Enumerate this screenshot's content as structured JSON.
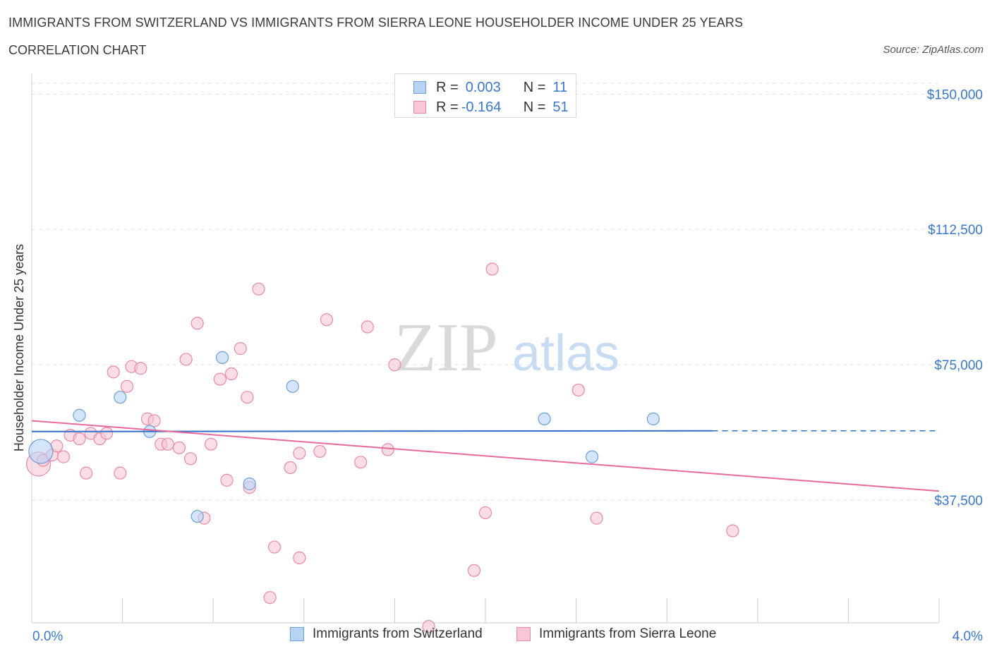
{
  "header": {
    "title": "IMMIGRANTS FROM SWITZERLAND VS IMMIGRANTS FROM SIERRA LEONE HOUSEHOLDER INCOME UNDER 25 YEARS",
    "subtitle": "CORRELATION CHART",
    "source": "Source: ZipAtlas.com"
  },
  "legend": {
    "rows": [
      {
        "r_label": "R =",
        "r_value": "0.003",
        "n_label": "N =",
        "n_value": "11"
      },
      {
        "r_label": "R =",
        "r_value": "-0.164",
        "n_label": "N =",
        "n_value": "51"
      }
    ]
  },
  "bottom_legend": {
    "items": [
      {
        "label": "Immigrants from Switzerland"
      },
      {
        "label": "Immigrants from Sierra Leone"
      }
    ]
  },
  "watermark": {
    "zip": "ZIP",
    "atlas": "atlas"
  },
  "colors": {
    "switzerland_fill": "#b9d3f5",
    "switzerland_stroke": "#6b9fd8",
    "switzerland_line": "#2f6fc8",
    "sierra_fill": "#f8c6d6",
    "sierra_stroke": "#e889a8",
    "sierra_line": "#e8699a",
    "tick_text": "#3b78c9",
    "grid": "#e1e1e1"
  },
  "chart_data": {
    "type": "scatter",
    "title": "IMMIGRANTS FROM SWITZERLAND VS IMMIGRANTS FROM SIERRA LEONE HOUSEHOLDER INCOME UNDER 25 YEARS",
    "xlabel": "",
    "ylabel": "Householder Income Under 25 years",
    "xlim": [
      0,
      4.0
    ],
    "ylim": [
      3500,
      153000
    ],
    "x_tick_labels": [
      "0.0%",
      "4.0%"
    ],
    "y_ticks": [
      37500,
      75000,
      112500,
      150000
    ],
    "y_tick_labels": [
      "$37,500",
      "$75,000",
      "$112,500",
      "$150,000"
    ],
    "grid": true,
    "series": [
      {
        "name": "Immigrants from Switzerland",
        "R": 0.003,
        "N": 11,
        "trend": {
          "x0": 0.0,
          "y0": 56500,
          "x1": 3.0,
          "y1": 56700,
          "dashed_to_x": 4.0
        },
        "points": [
          {
            "x": 0.04,
            "y": 51000,
            "big": true
          },
          {
            "x": 0.21,
            "y": 61000
          },
          {
            "x": 0.39,
            "y": 66000
          },
          {
            "x": 0.52,
            "y": 56500
          },
          {
            "x": 0.73,
            "y": 33000
          },
          {
            "x": 0.84,
            "y": 77000
          },
          {
            "x": 0.96,
            "y": 42000
          },
          {
            "x": 1.15,
            "y": 69000
          },
          {
            "x": 2.26,
            "y": 60000
          },
          {
            "x": 2.47,
            "y": 49500
          },
          {
            "x": 2.74,
            "y": 60000
          }
        ]
      },
      {
        "name": "Immigrants from Sierra Leone",
        "R": -0.164,
        "N": 51,
        "trend": {
          "x0": 0.0,
          "y0": 59500,
          "x1": 4.0,
          "y1": 40000
        },
        "points": [
          {
            "x": 0.03,
            "y": 47500,
            "big": true
          },
          {
            "x": 0.05,
            "y": 48500
          },
          {
            "x": 0.09,
            "y": 50000
          },
          {
            "x": 0.11,
            "y": 52500
          },
          {
            "x": 0.14,
            "y": 49500
          },
          {
            "x": 0.17,
            "y": 55500
          },
          {
            "x": 0.21,
            "y": 54500
          },
          {
            "x": 0.24,
            "y": 45000
          },
          {
            "x": 0.26,
            "y": 56000
          },
          {
            "x": 0.3,
            "y": 54500
          },
          {
            "x": 0.33,
            "y": 56000
          },
          {
            "x": 0.36,
            "y": 73000
          },
          {
            "x": 0.39,
            "y": 45000
          },
          {
            "x": 0.42,
            "y": 69000
          },
          {
            "x": 0.44,
            "y": 74500
          },
          {
            "x": 0.48,
            "y": 74000
          },
          {
            "x": 0.51,
            "y": 60000
          },
          {
            "x": 0.54,
            "y": 59500
          },
          {
            "x": 0.57,
            "y": 53000
          },
          {
            "x": 0.6,
            "y": 53000
          },
          {
            "x": 0.65,
            "y": 52000
          },
          {
            "x": 0.68,
            "y": 76500
          },
          {
            "x": 0.7,
            "y": 49000
          },
          {
            "x": 0.73,
            "y": 86500
          },
          {
            "x": 0.76,
            "y": 32500
          },
          {
            "x": 0.79,
            "y": 53000
          },
          {
            "x": 0.83,
            "y": 71000
          },
          {
            "x": 0.86,
            "y": 43000
          },
          {
            "x": 0.88,
            "y": 72500
          },
          {
            "x": 0.92,
            "y": 79500
          },
          {
            "x": 0.95,
            "y": 66000
          },
          {
            "x": 0.96,
            "y": 41000
          },
          {
            "x": 1.0,
            "y": 96000
          },
          {
            "x": 1.07,
            "y": 24500
          },
          {
            "x": 1.05,
            "y": 10500
          },
          {
            "x": 1.14,
            "y": 46500
          },
          {
            "x": 1.18,
            "y": 50500
          },
          {
            "x": 1.18,
            "y": 21500
          },
          {
            "x": 1.27,
            "y": 51000
          },
          {
            "x": 1.3,
            "y": 87500
          },
          {
            "x": 1.45,
            "y": 48000
          },
          {
            "x": 1.48,
            "y": 85500
          },
          {
            "x": 1.57,
            "y": 51500
          },
          {
            "x": 1.6,
            "y": 75000
          },
          {
            "x": 1.75,
            "y": 2500
          },
          {
            "x": 1.95,
            "y": 18000
          },
          {
            "x": 2.0,
            "y": 34000
          },
          {
            "x": 2.03,
            "y": 101500
          },
          {
            "x": 2.41,
            "y": 68000
          },
          {
            "x": 2.49,
            "y": 32500
          },
          {
            "x": 3.09,
            "y": 29000
          }
        ]
      }
    ]
  }
}
